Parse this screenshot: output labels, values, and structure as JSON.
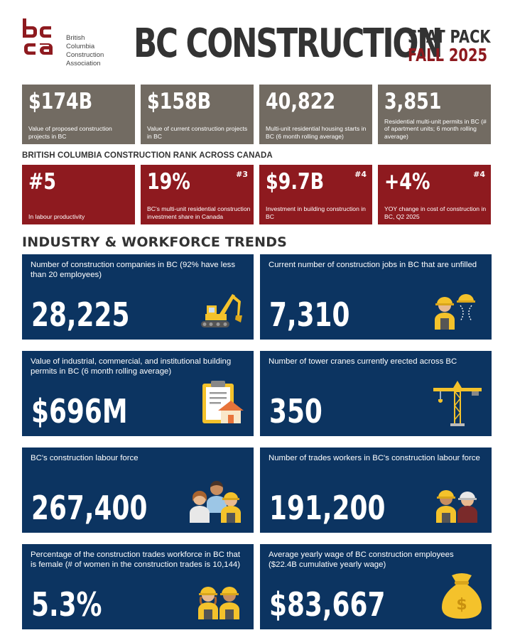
{
  "header": {
    "logo_lines": [
      "British",
      "Columbia",
      "Construction",
      "Association"
    ],
    "title": "BC CONSTRUCTION",
    "stat_pack": "STAT PACK",
    "season": "FALL 2025"
  },
  "colors": {
    "gray": "#726b62",
    "red": "#8e1a1f",
    "navy": "#0c3461",
    "gold": "#f4c22b"
  },
  "top_stats": [
    {
      "value": "$174B",
      "desc": "Value of proposed construction projects in BC"
    },
    {
      "value": "$158B",
      "desc": "Value of current construction projects in BC"
    },
    {
      "value": "40,822",
      "desc": "Multi-unit residential housing starts in BC (6 month rolling average)"
    },
    {
      "value": "3,851",
      "desc": "Residential multi-unit permits in BC (# of apartment units; 6 month rolling average)"
    }
  ],
  "rank_heading": "BRITISH COLUMBIA CONSTRUCTION RANK ACROSS CANADA",
  "rank_stats": [
    {
      "value": "#5",
      "rank": "",
      "desc": "In labour productivity"
    },
    {
      "value": "19%",
      "rank": "#3",
      "desc": "BC's multi-unit residential construction investment share in Canada"
    },
    {
      "value": "$9.7B",
      "rank": "#4",
      "desc": "Investment in building construction in BC"
    },
    {
      "value": "+4%",
      "rank": "#4",
      "desc": "YOY change in cost of construction in BC, Q2 2025"
    }
  ],
  "section_heading": "INDUSTRY & WORKFORCE TRENDS",
  "trends": [
    {
      "desc": "Number of construction companies in BC (92% have less than 20 employees)",
      "value": "28,225",
      "icon": "excavator-icon"
    },
    {
      "desc": "Current number of construction jobs in BC that are unfilled",
      "value": "7,310",
      "icon": "missing-workers-icon"
    },
    {
      "desc": "Value of industrial, commercial, and institutional building permits in BC (6 month rolling average)",
      "value": "$696M",
      "icon": "permit-clipboard-icon"
    },
    {
      "desc": "Number of tower cranes currently erected across BC",
      "value": "350",
      "icon": "tower-crane-icon"
    },
    {
      "desc": "BC's construction labour force",
      "value": "267,400",
      "icon": "workforce-group-icon"
    },
    {
      "desc": "Number of trades workers in BC's construction labour force",
      "value": "191,200",
      "icon": "trades-workers-icon"
    },
    {
      "desc": "Percentage of the construction trades workforce in BC that is female (# of women in the construction trades is 10,144)",
      "value": "5.3%",
      "icon": "female-worker-icon"
    },
    {
      "desc": "Average yearly wage of BC construction employees ($22.4B cumulative yearly wage)",
      "value": "$83,667",
      "icon": "money-bag-icon"
    }
  ]
}
